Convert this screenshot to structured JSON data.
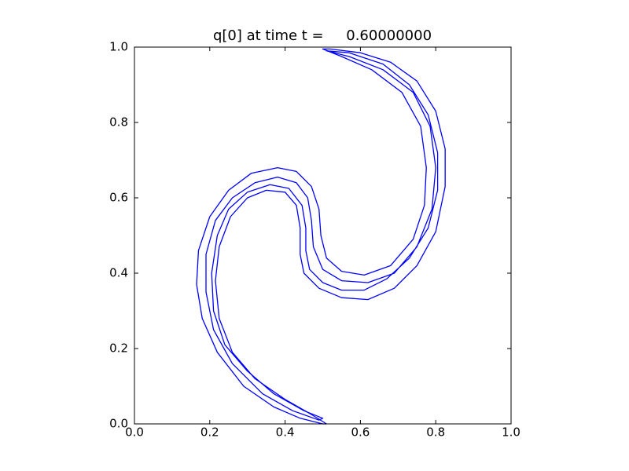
{
  "chart_data": {
    "type": "contour",
    "title": "q[0] at time t =     0.60000000",
    "color": "#0000ff",
    "xlim": [
      0,
      1
    ],
    "ylim": [
      0,
      1
    ],
    "xticks": [
      {
        "value": 0,
        "label": "0.0"
      },
      {
        "value": 0.2,
        "label": "0.2"
      },
      {
        "value": 0.4,
        "label": "0.4"
      },
      {
        "value": 0.6,
        "label": "0.6"
      },
      {
        "value": 0.8,
        "label": "0.8"
      },
      {
        "value": 1,
        "label": "1.0"
      }
    ],
    "yticks": [
      {
        "value": 0,
        "label": "0.0"
      },
      {
        "value": 0.2,
        "label": "0.2"
      },
      {
        "value": 0.4,
        "label": "0.4"
      },
      {
        "value": 0.6,
        "label": "0.6"
      },
      {
        "value": 0.8,
        "label": "0.8"
      },
      {
        "value": 1,
        "label": "1.0"
      }
    ],
    "contours": [
      {
        "x": [
          0.5,
          0.44,
          0.37,
          0.29,
          0.22,
          0.18,
          0.165,
          0.17,
          0.2,
          0.25,
          0.31,
          0.38,
          0.43,
          0.47,
          0.49,
          0.495,
          0.51,
          0.55,
          0.61,
          0.68,
          0.74,
          0.77,
          0.775,
          0.76,
          0.71,
          0.63,
          0.55,
          0.5,
          0.52,
          0.6,
          0.68,
          0.75,
          0.8,
          0.825,
          0.825,
          0.8,
          0.75,
          0.69,
          0.62,
          0.55,
          0.49,
          0.45,
          0.44,
          0.44,
          0.43,
          0.4,
          0.35,
          0.3,
          0.255,
          0.225,
          0.215,
          0.225,
          0.26,
          0.32,
          0.4,
          0.47,
          0.51
        ],
        "y": [
          0.0,
          0.015,
          0.045,
          0.1,
          0.19,
          0.28,
          0.37,
          0.46,
          0.55,
          0.62,
          0.665,
          0.68,
          0.67,
          0.63,
          0.57,
          0.5,
          0.44,
          0.405,
          0.395,
          0.42,
          0.49,
          0.58,
          0.68,
          0.79,
          0.88,
          0.94,
          0.975,
          0.995,
          0.995,
          0.985,
          0.96,
          0.91,
          0.83,
          0.73,
          0.63,
          0.51,
          0.42,
          0.36,
          0.33,
          0.335,
          0.36,
          0.4,
          0.45,
          0.52,
          0.58,
          0.615,
          0.62,
          0.6,
          0.55,
          0.47,
          0.38,
          0.28,
          0.19,
          0.12,
          0.065,
          0.025,
          0.0
        ]
      },
      {
        "x": [
          0.49,
          0.42,
          0.34,
          0.26,
          0.21,
          0.19,
          0.19,
          0.215,
          0.26,
          0.32,
          0.38,
          0.43,
          0.46,
          0.47,
          0.475,
          0.5,
          0.55,
          0.62,
          0.69,
          0.75,
          0.79,
          0.8,
          0.785,
          0.74,
          0.66,
          0.57,
          0.51,
          0.57,
          0.66,
          0.73,
          0.78,
          0.805,
          0.805,
          0.78,
          0.73,
          0.67,
          0.61,
          0.55,
          0.5,
          0.465,
          0.455,
          0.455,
          0.445,
          0.41,
          0.36,
          0.3,
          0.25,
          0.22,
          0.205,
          0.21,
          0.24,
          0.3,
          0.37,
          0.45,
          0.5
        ],
        "y": [
          0.01,
          0.035,
          0.08,
          0.16,
          0.25,
          0.35,
          0.45,
          0.54,
          0.6,
          0.64,
          0.655,
          0.64,
          0.6,
          0.54,
          0.47,
          0.41,
          0.38,
          0.375,
          0.4,
          0.47,
          0.57,
          0.68,
          0.79,
          0.88,
          0.94,
          0.975,
          0.99,
          0.985,
          0.955,
          0.9,
          0.82,
          0.72,
          0.62,
          0.52,
          0.44,
          0.385,
          0.355,
          0.355,
          0.375,
          0.41,
          0.46,
          0.52,
          0.58,
          0.625,
          0.635,
          0.615,
          0.57,
          0.5,
          0.4,
          0.3,
          0.21,
          0.14,
          0.08,
          0.035,
          0.015
        ]
      }
    ]
  }
}
